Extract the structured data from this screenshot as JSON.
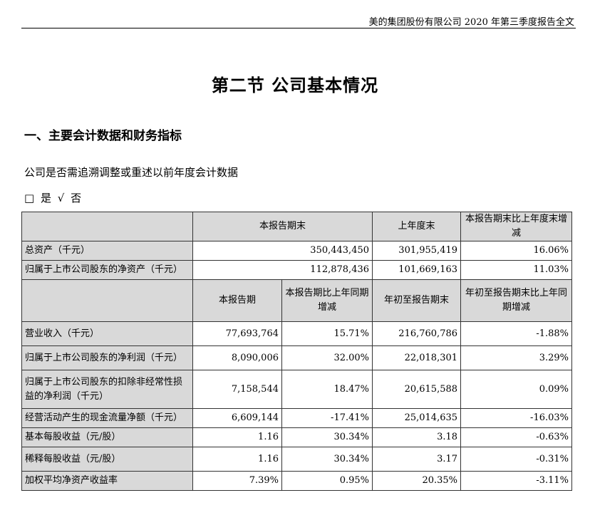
{
  "header": {
    "title": "美的集团股份有限公司 2020 年第三季度报告全文"
  },
  "section_title": "第二节 公司基本情况",
  "subsection_title": "一、主要会计数据和财务指标",
  "question": "公司是否需追溯调整或重述以前年度会计数据",
  "answer": {
    "yes_box": "□",
    "yes": "是",
    "no_check": "√",
    "no": "否"
  },
  "table1": {
    "headers": [
      "本报告期末",
      "上年度末",
      "本报告期末比上年度末增减"
    ],
    "rows": [
      {
        "label": "总资产（千元）",
        "values": [
          "350,443,450",
          "301,955,419",
          "16.06%"
        ]
      },
      {
        "label": "归属于上市公司股东的净资产（千元）",
        "values": [
          "112,878,436",
          "101,669,163",
          "11.03%"
        ]
      }
    ]
  },
  "table2": {
    "headers": [
      "本报告期",
      "本报告期比上年同期增减",
      "年初至报告期末",
      "年初至报告期末比上年同期增减"
    ],
    "rows": [
      {
        "label": "营业收入（千元）",
        "values": [
          "77,693,764",
          "15.71%",
          "216,760,786",
          "-1.88%"
        ]
      },
      {
        "label": "归属于上市公司股东的净利润（千元）",
        "values": [
          "8,090,006",
          "32.00%",
          "22,018,301",
          "3.29%"
        ]
      },
      {
        "label": "归属于上市公司股东的扣除非经常性损益的净利润（千元）",
        "values": [
          "7,158,544",
          "18.47%",
          "20,615,588",
          "0.09%"
        ]
      },
      {
        "label": "经营活动产生的现金流量净额（千元）",
        "values": [
          "6,609,144",
          "-17.41%",
          "25,014,635",
          "-16.03%"
        ]
      },
      {
        "label": "基本每股收益（元/股）",
        "values": [
          "1.16",
          "30.34%",
          "3.18",
          "-0.63%"
        ]
      },
      {
        "label": "稀释每股收益（元/股）",
        "values": [
          "1.16",
          "30.34%",
          "3.17",
          "-0.31%"
        ]
      },
      {
        "label": "加权平均净资产收益率",
        "values": [
          "7.39%",
          "0.95%",
          "20.35%",
          "-3.11%"
        ]
      }
    ]
  }
}
